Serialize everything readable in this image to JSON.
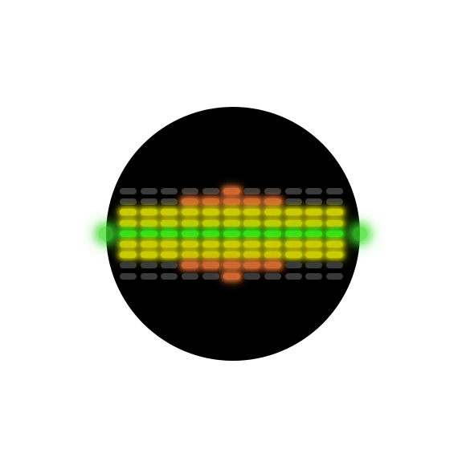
{
  "visualizer": {
    "shape": "circular-disc",
    "background_color": "#000000",
    "page_background": "#ffffff",
    "columns": 11,
    "rows_per_column": 9,
    "center_row_index": 4,
    "colors": {
      "off": "#3a3a3a",
      "green": "#3ddc2a",
      "yellow": "#c8c81a",
      "orange": "#c46a3a"
    },
    "column_levels": [
      3,
      3,
      3,
      3,
      3,
      3,
      3,
      3,
      3,
      3,
      3
    ],
    "column_peaks": [
      0,
      0,
      0,
      1,
      1,
      2,
      1,
      1,
      0,
      0,
      0
    ],
    "side_glows": [
      "left",
      "right"
    ]
  }
}
